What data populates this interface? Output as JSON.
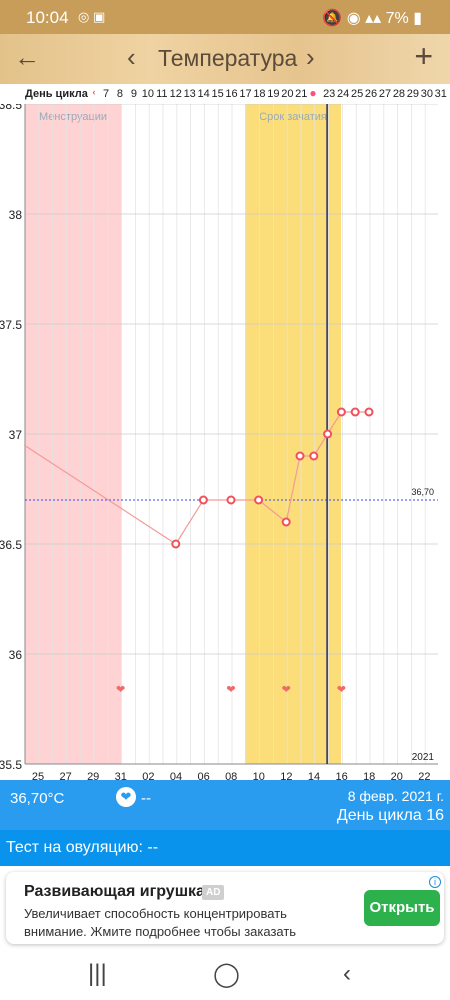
{
  "status": {
    "time": "10:04",
    "battery": "7%",
    "left_icons": "◎ ▣",
    "right_icons": "🔕 ◉ ▴▴ "
  },
  "appbar": {
    "title": "Температура",
    "back": "←",
    "prev": "‹",
    "next": "›",
    "add": "+"
  },
  "dayrow": {
    "label": "День цикла",
    "days": [
      "7",
      "8",
      "9",
      "10",
      "11",
      "12",
      "13",
      "14",
      "15",
      "16",
      "17",
      "18",
      "19",
      "20",
      "21",
      "",
      "23",
      "24",
      "25",
      "26",
      "27",
      "28",
      "29",
      "30",
      "31"
    ]
  },
  "chart_data": {
    "type": "line",
    "ylim": [
      35.5,
      38.5
    ],
    "yticks": [
      "38.5",
      "38",
      "37.5",
      "37",
      "36.5",
      "36",
      "35.5"
    ],
    "year_label": "2021",
    "x_dates": [
      "25",
      "27",
      "29",
      "31",
      "02",
      "04",
      "06",
      "08",
      "10",
      "12",
      "14",
      "16",
      "18",
      "20",
      "22"
    ],
    "bands": [
      {
        "name": "Менструации",
        "color": "#ffd3d3"
      },
      {
        "name": "Срок зачатия",
        "color": "#fbdd7a"
      }
    ],
    "coverline": {
      "value": 36.7,
      "label": "36,70"
    },
    "series": [
      {
        "x": [
          -1,
          10,
          12,
          14,
          16,
          18,
          19,
          20,
          21,
          22,
          23,
          24
        ],
        "y": [
          36.95,
          36.5,
          36.7,
          36.7,
          36.7,
          36.6,
          36.9,
          36.9,
          37.0,
          37.1,
          37.1,
          37.1
        ]
      }
    ],
    "current_day_index": 21,
    "hearts_at": [
      6,
      14,
      18,
      22
    ]
  },
  "info": {
    "temperature": "36,70°C",
    "heart_value": "--",
    "date": "8 февр. 2021 г.",
    "cycle_day": "День цикла 16"
  },
  "ovulation": {
    "label": "Тест на овуляцию: --"
  },
  "ad": {
    "title": "Развивающая игрушка",
    "badge": "AD",
    "text": "Увеличивает способность концентрировать внимание. Жмите подробнее чтобы заказать",
    "button": "Открыть",
    "info": "i"
  },
  "nav": {
    "recents": "|||",
    "home": "◯",
    "back": "‹"
  }
}
